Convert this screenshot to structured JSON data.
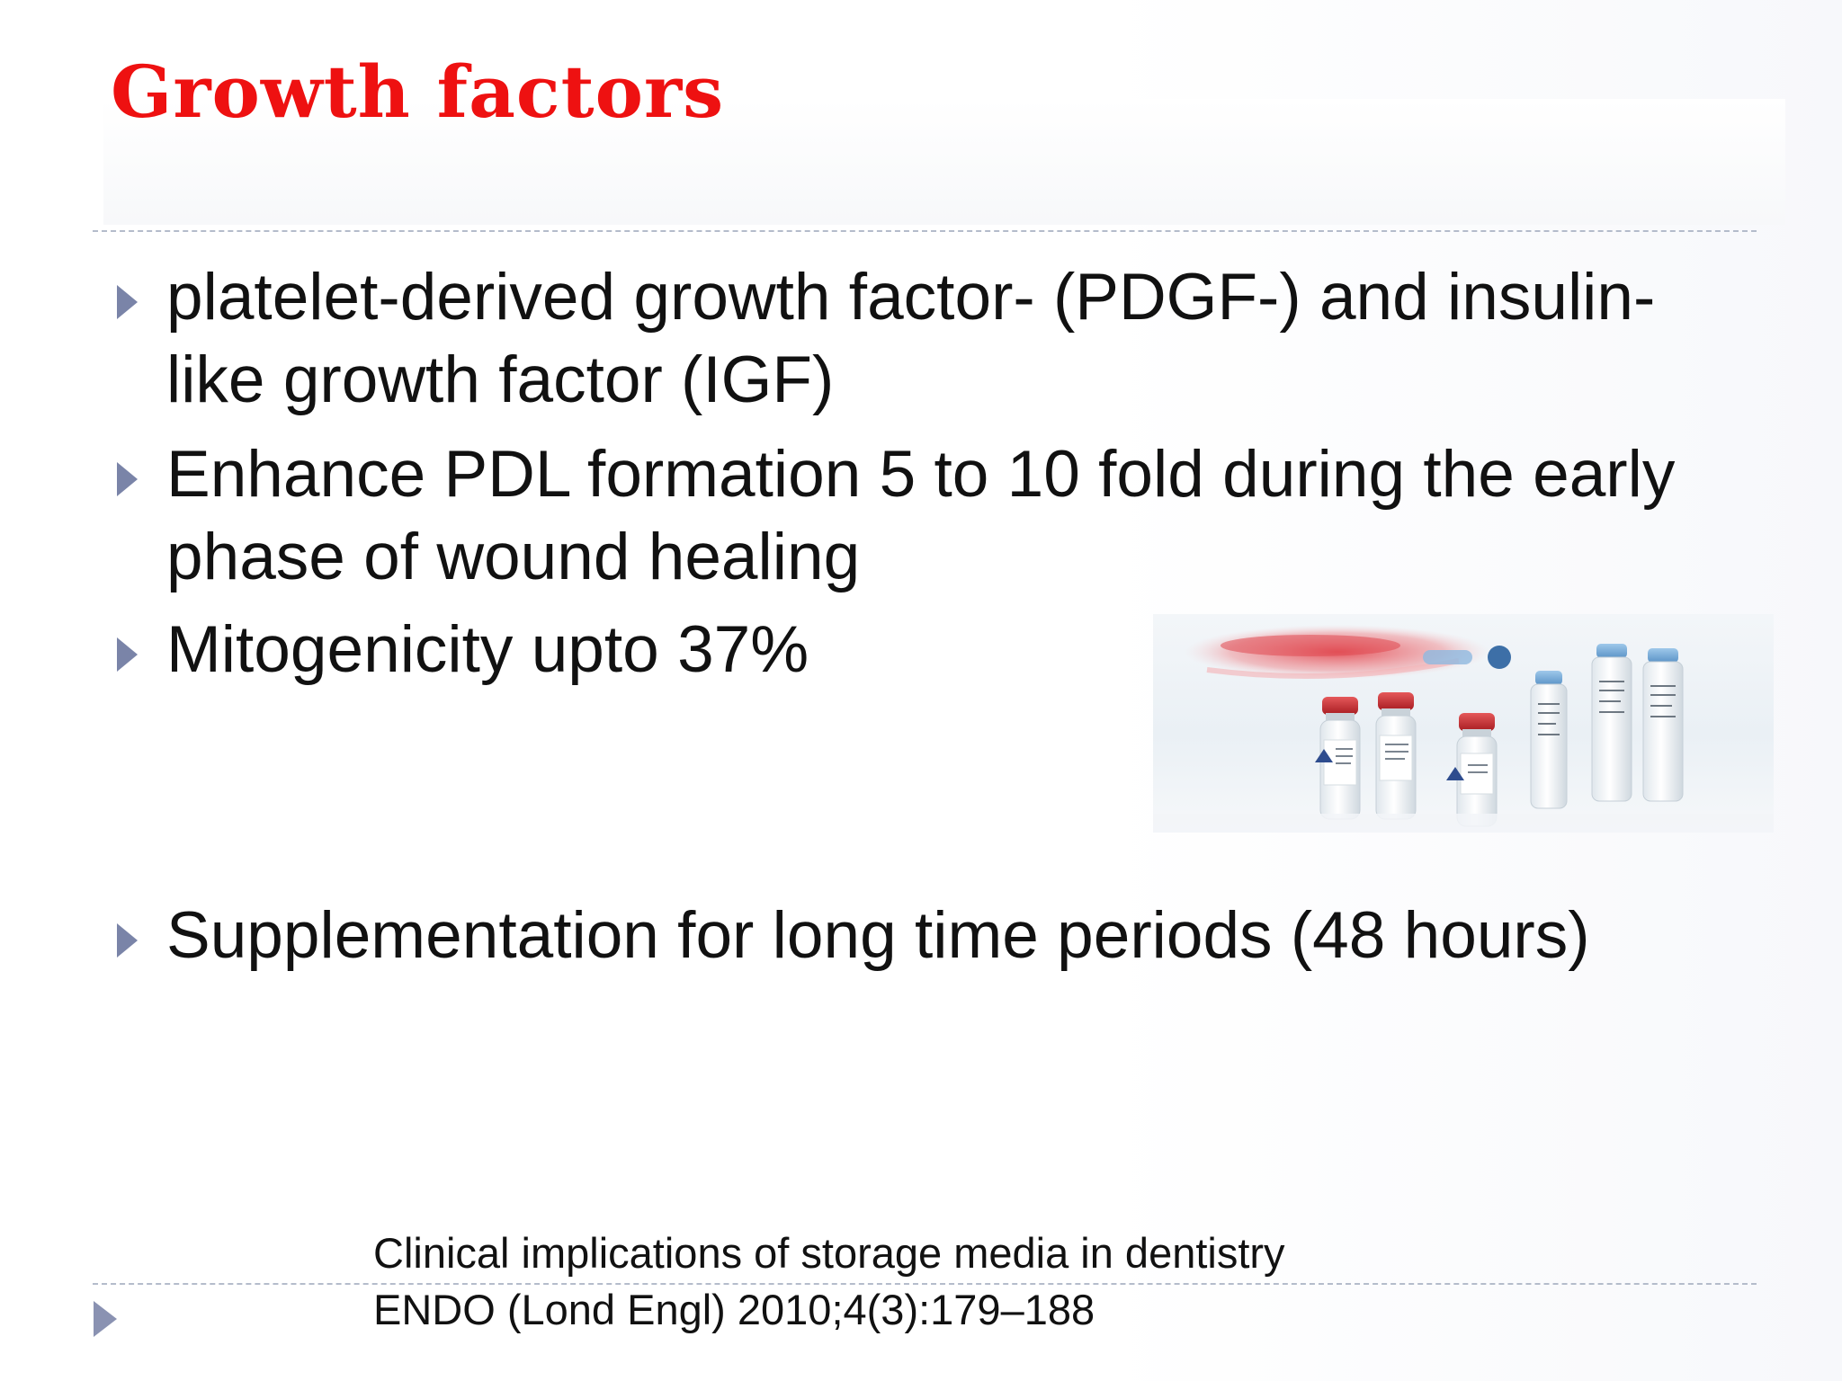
{
  "slide": {
    "title": "Growth factors",
    "title_color": "#ee1111",
    "bullet_icon": "triangle-bullet-icon",
    "bullets": [
      {
        "text": "platelet-derived growth factor- (PDGF-) and insulin-\nlike growth factor (IGF)"
      },
      {
        "text": "Enhance PDL formation 5 to 10 fold during the early\nphase of wound healing"
      },
      {
        "text": "Mitogenicity upto 37%"
      },
      {
        "text": "Supplementation for long time periods (48 hours)"
      }
    ],
    "citation": {
      "line1": "Clinical implications of storage media in dentistry",
      "line2": "ENDO (Lond Engl) 2010;4(3):179–188"
    }
  }
}
